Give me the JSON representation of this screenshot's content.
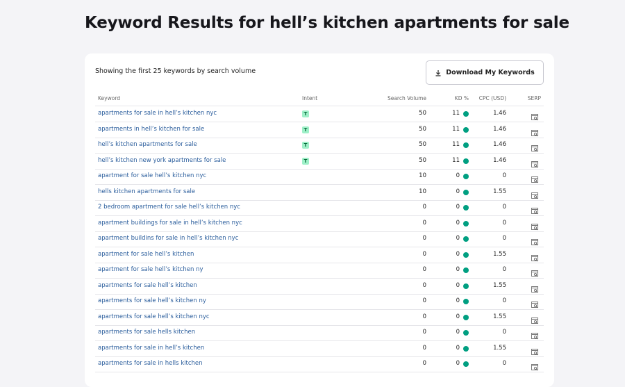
{
  "header": {
    "title": "Keyword Results for hell’s kitchen apartments for sale"
  },
  "summary": "Showing the first 25 keywords by search volume",
  "download_button": "Download My Keywords",
  "table": {
    "columns": [
      "Keyword",
      "Intent",
      "Search Volume",
      "KD %",
      "CPC (USD)",
      "SERP"
    ],
    "rows": [
      {
        "keyword": "apartments for sale in hell’s kitchen nyc",
        "intent": "T",
        "volume": 50,
        "kd": 11,
        "cpc": 1.46
      },
      {
        "keyword": "apartments in hell’s kitchen for sale",
        "intent": "T",
        "volume": 50,
        "kd": 11,
        "cpc": 1.46
      },
      {
        "keyword": "hell’s kitchen apartments for sale",
        "intent": "T",
        "volume": 50,
        "kd": 11,
        "cpc": 1.46
      },
      {
        "keyword": "hell’s kitchen new york apartments for sale",
        "intent": "T",
        "volume": 50,
        "kd": 11,
        "cpc": 1.46
      },
      {
        "keyword": "apartment for sale hell’s kitchen nyc",
        "volume": 10,
        "kd": 0,
        "cpc": 0
      },
      {
        "keyword": "hells kitchen apartments for sale",
        "volume": 10,
        "kd": 0,
        "cpc": 1.55
      },
      {
        "keyword": "2 bedroom apartment for sale hell’s kitchen nyc",
        "volume": 0,
        "kd": 0,
        "cpc": 0
      },
      {
        "keyword": "apartment buildings for sale in hell’s kitchen nyc",
        "volume": 0,
        "kd": 0,
        "cpc": 0
      },
      {
        "keyword": "apartment buildins for sale in hell’s kitchen nyc",
        "volume": 0,
        "kd": 0,
        "cpc": 0
      },
      {
        "keyword": "apartment for sale hell’s kitchen",
        "volume": 0,
        "kd": 0,
        "cpc": 1.55
      },
      {
        "keyword": "apartment for sale hell’s kitchen ny",
        "volume": 0,
        "kd": 0,
        "cpc": 0
      },
      {
        "keyword": "apartments for sale hell’s kitchen",
        "volume": 0,
        "kd": 0,
        "cpc": 1.55
      },
      {
        "keyword": "apartments for sale hell’s kitchen ny",
        "volume": 0,
        "kd": 0,
        "cpc": 0
      },
      {
        "keyword": "apartments for sale hell’s kitchen nyc",
        "volume": 0,
        "kd": 0,
        "cpc": 1.55
      },
      {
        "keyword": "apartments for sale hells kitchen",
        "volume": 0,
        "kd": 0,
        "cpc": 0
      },
      {
        "keyword": "apartments for sale in hell’s kitchen",
        "volume": 0,
        "kd": 0,
        "cpc": 1.55
      },
      {
        "keyword": "apartments for sale in hells kitchen",
        "volume": 0,
        "kd": 0,
        "cpc": 0
      }
    ]
  }
}
